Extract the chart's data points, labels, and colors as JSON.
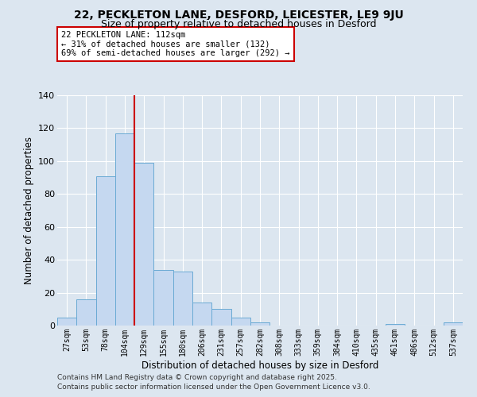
{
  "title1": "22, PECKLETON LANE, DESFORD, LEICESTER, LE9 9JU",
  "title2": "Size of property relative to detached houses in Desford",
  "xlabel": "Distribution of detached houses by size in Desford",
  "ylabel": "Number of detached properties",
  "bar_labels": [
    "27sqm",
    "53sqm",
    "78sqm",
    "104sqm",
    "129sqm",
    "155sqm",
    "180sqm",
    "206sqm",
    "231sqm",
    "257sqm",
    "282sqm",
    "308sqm",
    "333sqm",
    "359sqm",
    "384sqm",
    "410sqm",
    "435sqm",
    "461sqm",
    "486sqm",
    "512sqm",
    "537sqm"
  ],
  "bar_values": [
    5,
    16,
    91,
    117,
    99,
    34,
    33,
    14,
    10,
    5,
    2,
    0,
    0,
    0,
    0,
    0,
    0,
    1,
    0,
    0,
    2
  ],
  "bar_color": "#c5d8f0",
  "bar_edge_color": "#6aaad4",
  "grid_color": "#ffffff",
  "background_color": "#dce6f0",
  "annotation_box_text": "22 PECKLETON LANE: 112sqm\n← 31% of detached houses are smaller (132)\n69% of semi-detached houses are larger (292) →",
  "annotation_box_color": "#ffffff",
  "annotation_box_edge_color": "#cc0000",
  "vline_color": "#cc0000",
  "ylim": [
    0,
    140
  ],
  "yticks": [
    0,
    20,
    40,
    60,
    80,
    100,
    120,
    140
  ],
  "footer1": "Contains HM Land Registry data © Crown copyright and database right 2025.",
  "footer2": "Contains public sector information licensed under the Open Government Licence v3.0."
}
